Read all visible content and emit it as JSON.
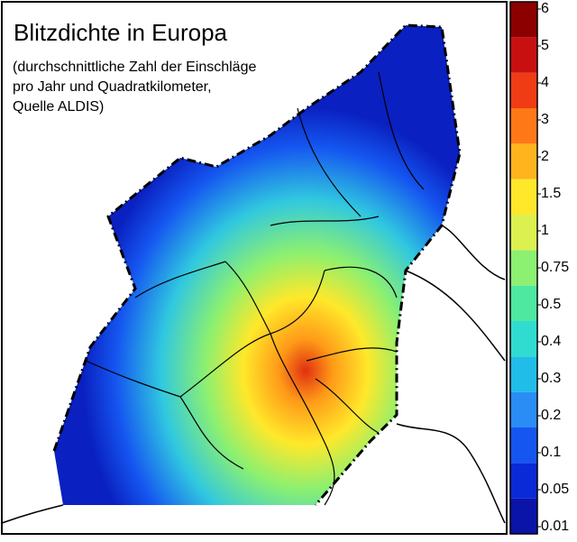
{
  "title": "Blitzdichte in Europa",
  "subtitle": [
    "(durchschnittliche Zahl der Einschläge",
    "pro Jahr und Quadratkilometer,",
    "Quelle ALDIS)"
  ],
  "colorbar": {
    "ticks": [
      0.01,
      0.05,
      0.1,
      0.2,
      0.3,
      0.4,
      0.5,
      0.75,
      1,
      1.5,
      2,
      3,
      4,
      5,
      6
    ],
    "colors": [
      "#0a14a8",
      "#0a2ad8",
      "#1556f0",
      "#2a8cf5",
      "#20bde8",
      "#30dcd0",
      "#4ee8a0",
      "#8cf070",
      "#dcf050",
      "#ffe82a",
      "#ffb41e",
      "#ff7818",
      "#f03c14",
      "#c81010",
      "#8c0000"
    ]
  }
}
